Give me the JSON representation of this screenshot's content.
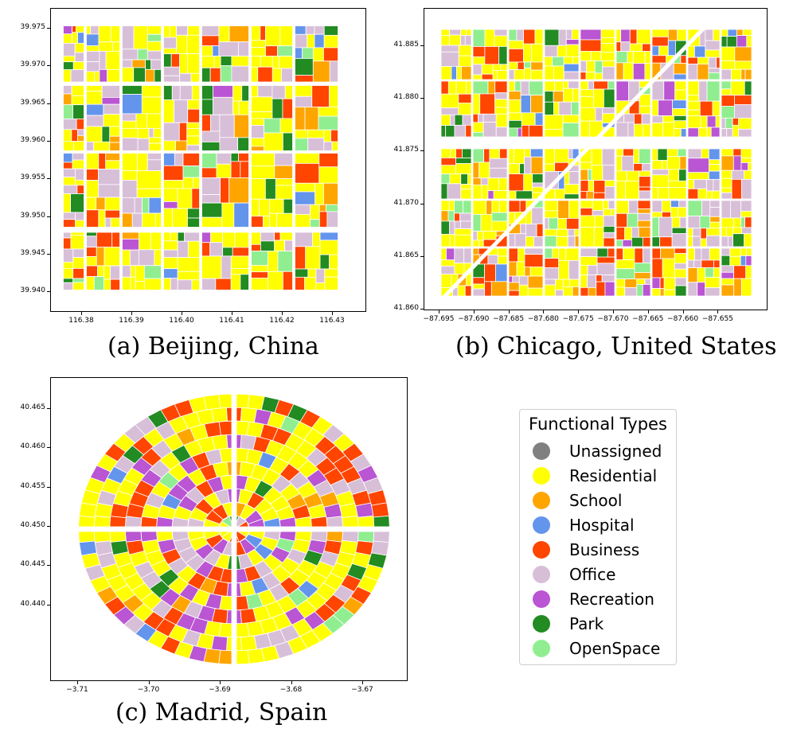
{
  "colors": {
    "Unassigned": "#808080",
    "Residential": "#ffff00",
    "School": "#ffa500",
    "Hospital": "#6495ed",
    "Business": "#ff4500",
    "Office": "#d8bfd8",
    "Recreation": "#ba55d3",
    "Park": "#228b22",
    "OpenSpace": "#90ee90"
  },
  "panels": {
    "beijing": {
      "caption": "(a) Beijing, China",
      "x_ticks": [
        "116.38",
        "116.39",
        "116.40",
        "116.41",
        "116.42",
        "116.43"
      ],
      "y_ticks": [
        "39.975",
        "39.970",
        "39.965",
        "39.960",
        "39.955",
        "39.950",
        "39.945",
        "39.940"
      ]
    },
    "chicago": {
      "caption": "(b) Chicago, United States",
      "x_ticks": [
        "−87.695",
        "−87.690",
        "−87.685",
        "−87.680",
        "−87.675",
        "−87.670",
        "−87.665",
        "−87.660",
        "−87.655"
      ],
      "y_ticks": [
        "41.885",
        "41.880",
        "41.875",
        "41.870",
        "41.865",
        "41.860"
      ]
    },
    "madrid": {
      "caption": "(c) Madrid, Spain",
      "x_ticks": [
        "−3.71",
        "−3.70",
        "−3.69",
        "−3.68",
        "−3.67"
      ],
      "y_ticks": [
        "40.465",
        "40.460",
        "40.455",
        "40.450",
        "40.445",
        "40.440"
      ]
    }
  },
  "legend": {
    "title": "Functional Types",
    "items": [
      {
        "label": "Unassigned",
        "color": "#808080"
      },
      {
        "label": "Residential",
        "color": "#ffff00"
      },
      {
        "label": "School",
        "color": "#ffa500"
      },
      {
        "label": "Hospital",
        "color": "#6495ed"
      },
      {
        "label": "Business",
        "color": "#ff4500"
      },
      {
        "label": "Office",
        "color": "#d8bfd8"
      },
      {
        "label": "Recreation",
        "color": "#ba55d3"
      },
      {
        "label": "Park",
        "color": "#228b22"
      },
      {
        "label": "OpenSpace",
        "color": "#90ee90"
      }
    ]
  }
}
